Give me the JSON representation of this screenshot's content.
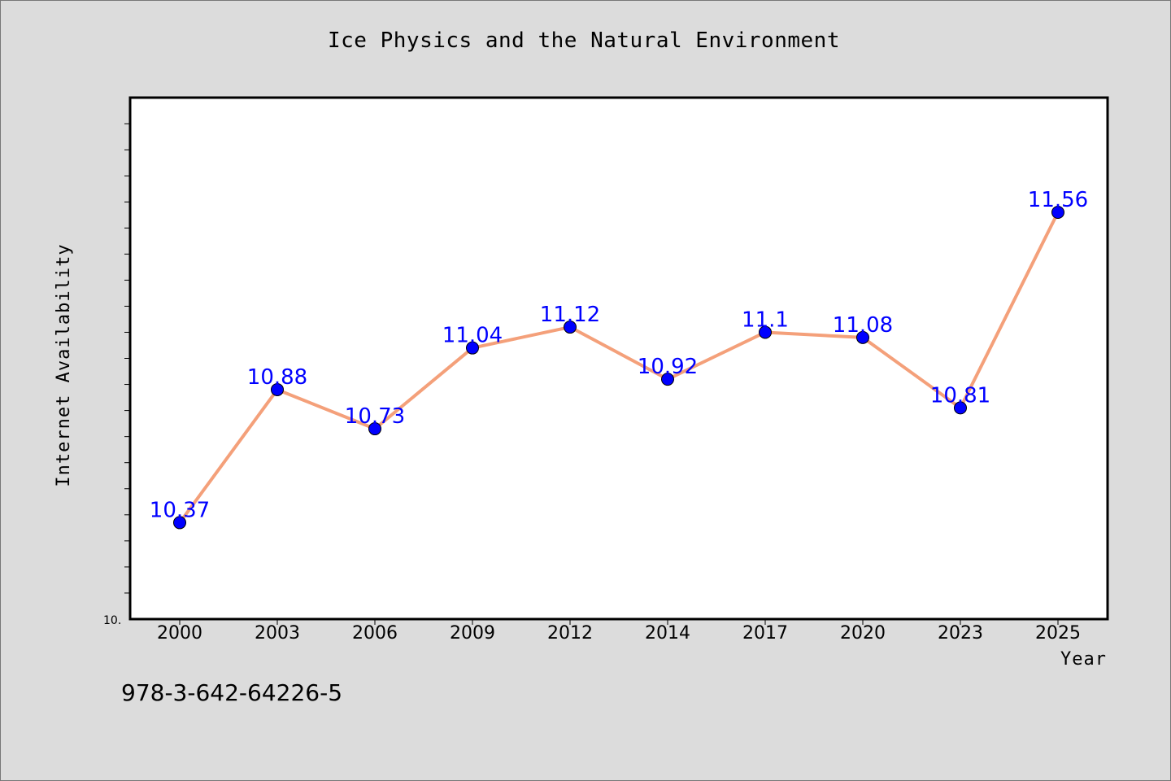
{
  "chart_data": {
    "type": "line",
    "title": "Ice Physics and the Natural Environment",
    "xlabel": "Year",
    "ylabel": "Internet Availability",
    "categories": [
      "2000",
      "2003",
      "2006",
      "2009",
      "2012",
      "2014",
      "2017",
      "2020",
      "2023",
      "2025"
    ],
    "values": [
      10.37,
      10.88,
      10.73,
      11.04,
      11.12,
      10.92,
      11.1,
      11.08,
      10.81,
      11.56
    ],
    "data_labels": [
      "10.37",
      "10.88",
      "10.73",
      "11.04",
      "11.12",
      "10.92",
      "11.1",
      "11.08",
      "10.81",
      "11.56"
    ],
    "ylim": [
      10.0,
      12.0
    ],
    "y_tick_label": "10.",
    "grid": false,
    "legend": "none",
    "colors": {
      "line": "#f4a07a",
      "marker": "#0000ff",
      "data_label": "#0000ff",
      "plot_background": "#ffffff",
      "page_background": "#dcdcdc"
    }
  },
  "footer": {
    "isbn": "978-3-642-64226-5"
  }
}
